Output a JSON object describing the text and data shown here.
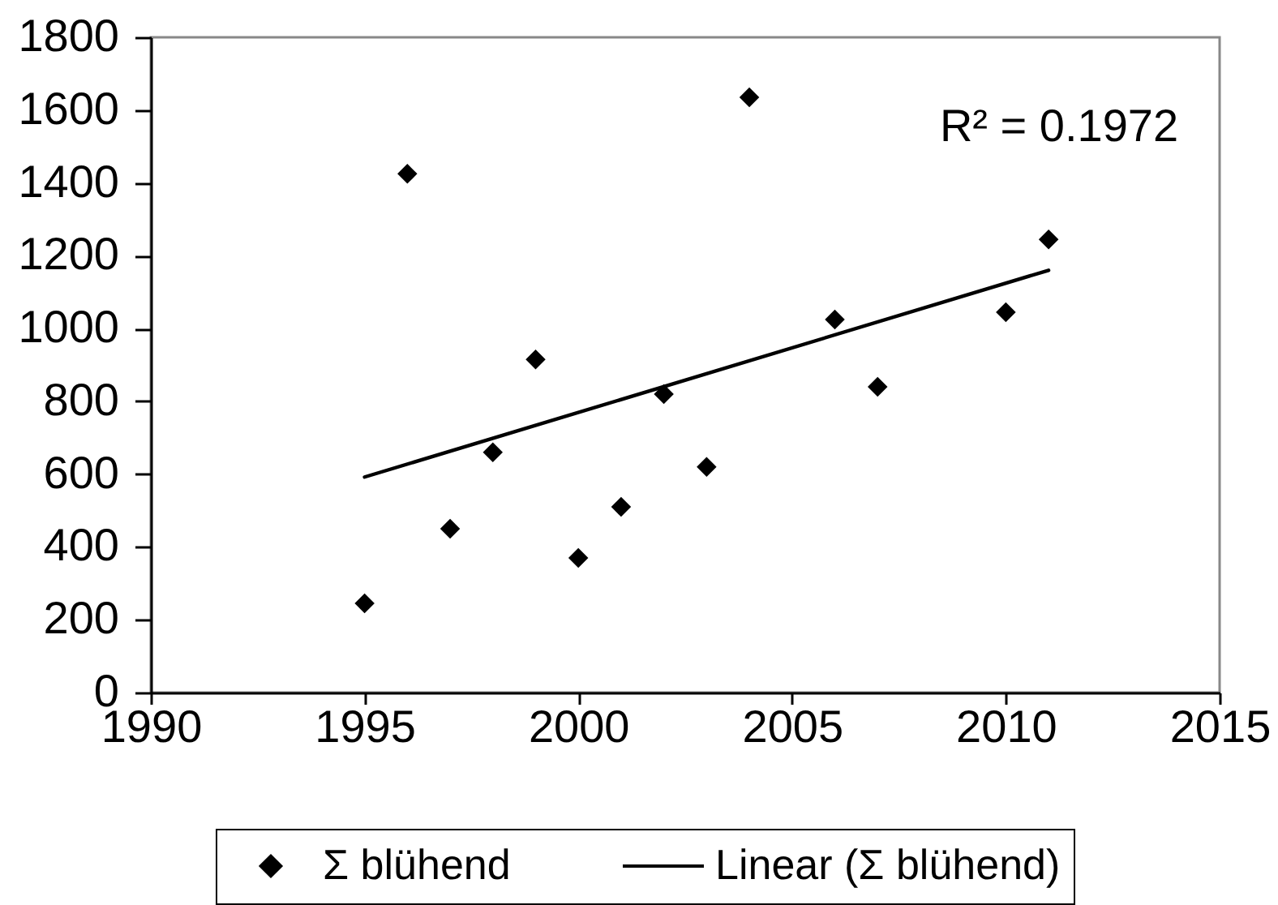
{
  "chart_data": {
    "type": "scatter",
    "x": [
      1995,
      1996,
      1997,
      1998,
      1999,
      2000,
      2001,
      2002,
      2003,
      2004,
      2006,
      2007,
      2010,
      2011
    ],
    "xlim": [
      1990,
      2015
    ],
    "xticks": [
      1990,
      1995,
      2000,
      2005,
      2010,
      2015
    ],
    "ylim": [
      0,
      1800
    ],
    "yticks": [
      0,
      200,
      400,
      600,
      800,
      1000,
      1200,
      1400,
      1600,
      1800
    ],
    "marker": "diamond",
    "legend": "bottom",
    "annotations": [
      "R² = 0.1972"
    ],
    "series": [
      {
        "name": "Σ blühend",
        "color": "#000000",
        "values": [
          245,
          1425,
          450,
          660,
          915,
          370,
          510,
          820,
          620,
          1635,
          1025,
          840,
          1045,
          1245
        ]
      },
      {
        "name": "Linear (Σ blühend)",
        "type": "line",
        "color": "#000000",
        "marker": "none",
        "x": [
          1995,
          2011
        ],
        "values": [
          592,
          1160
        ]
      }
    ]
  }
}
